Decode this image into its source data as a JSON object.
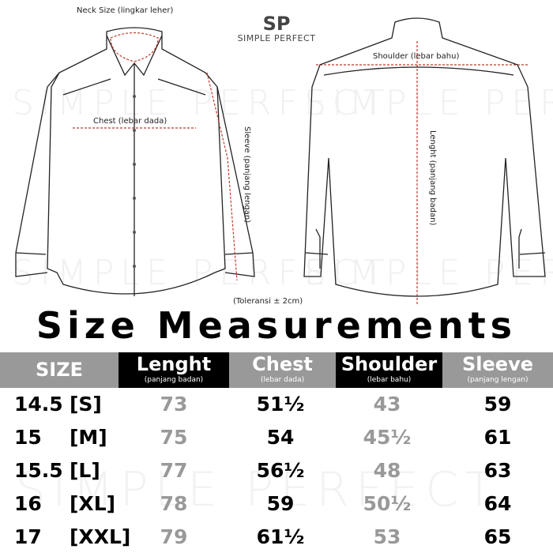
{
  "brand": {
    "name": "SIMPLE PERFECT",
    "logo": "SP"
  },
  "diagram": {
    "neck_label": "Neck Size (lingkar leher)",
    "chest_label": "Chest (lebar dada)",
    "sleeve_label": "Sleeve (panjang lengan)",
    "shoulder_label": "Shoulder (lebar bahu)",
    "length_label": "Lenght (panjang badan)",
    "tolerance": "(Toleransi ± 2cm)"
  },
  "title": "Size Measurements",
  "table": {
    "headers": [
      {
        "main": "SIZE",
        "sub": ""
      },
      {
        "main": "Lenght",
        "sub": "(panjang badan)"
      },
      {
        "main": "Chest",
        "sub": "(lebar dada)"
      },
      {
        "main": "Shoulder",
        "sub": "(lebar bahu)"
      },
      {
        "main": "Sleeve",
        "sub": "(panjang lengan)"
      }
    ],
    "rows": [
      {
        "neck": "14.5",
        "size": "[S]",
        "length": "73",
        "chest": "51½",
        "shoulder": "43",
        "sleeve": "59"
      },
      {
        "neck": "15",
        "size": "[M]",
        "length": "75",
        "chest": "54",
        "shoulder": "45½",
        "sleeve": "61"
      },
      {
        "neck": "15.5",
        "size": "[L]",
        "length": "77",
        "chest": "56½",
        "shoulder": "48",
        "sleeve": "63"
      },
      {
        "neck": "16",
        "size": "[XL]",
        "length": "78",
        "chest": "59",
        "shoulder": "50½",
        "sleeve": "64"
      },
      {
        "neck": "17",
        "size": "[XXL]",
        "length": "79",
        "chest": "61½",
        "shoulder": "53",
        "sleeve": "65"
      }
    ]
  },
  "colors": {
    "header_gray": "#999999",
    "measure_line": "#c0392b",
    "muted_value": "#999999"
  }
}
